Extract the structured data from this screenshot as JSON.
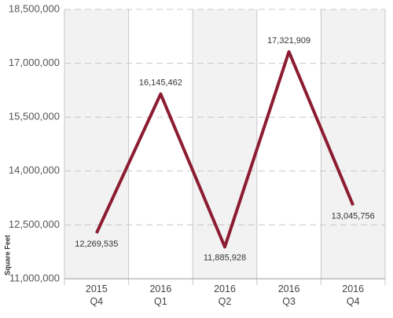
{
  "chart_data": {
    "type": "line",
    "y_label": "Square Feet",
    "categories": [
      "2015 Q4",
      "2016 Q1",
      "2016 Q2",
      "2016 Q3",
      "2016 Q4"
    ],
    "series": [
      {
        "name": "Square Feet",
        "color": "#8c1c32",
        "values": [
          12269535,
          16145462,
          11885928,
          17321909,
          13045756
        ],
        "value_labels": [
          "12,269,535",
          "16,145,462",
          "11,885,928",
          "17,321,909",
          "13,045,756"
        ]
      }
    ],
    "ylim": [
      11000000,
      18500000
    ],
    "yticks": [
      {
        "value": 11000000,
        "label": "11,000,000"
      },
      {
        "value": 12500000,
        "label": "12,500,000"
      },
      {
        "value": 14000000,
        "label": "14,000,000"
      },
      {
        "value": 15500000,
        "label": "15,500,000"
      },
      {
        "value": 17000000,
        "label": "17,000,000"
      },
      {
        "value": 18500000,
        "label": "18,500,000"
      }
    ],
    "grid": true
  }
}
